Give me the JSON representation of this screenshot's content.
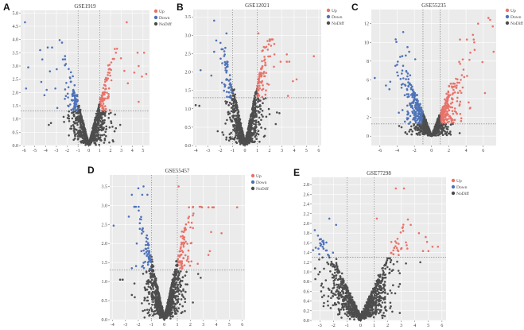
{
  "colors": {
    "up": "#E8736A",
    "down": "#4F72B8",
    "nodiff": "#4D4D4D",
    "panel_bg": "#EBEBEB",
    "grid": "#FFFFFF"
  },
  "legend": [
    "Up",
    "Down",
    "NoDiff"
  ],
  "chart_data": [
    {
      "letter": "A",
      "type": "scatter",
      "title": "GSE1919",
      "xlabel": "",
      "ylabel": "",
      "xlim": [
        -6.3,
        5.6
      ],
      "ylim": [
        0,
        5.1
      ],
      "xticks": [
        -6,
        -5,
        -4,
        -3,
        -2,
        -1,
        0,
        1,
        2,
        3,
        4,
        5
      ],
      "yticks": [
        "0.0",
        "0.5",
        "1.0",
        "1.5",
        "2.0",
        "2.5",
        "3.0",
        "3.5",
        "4.0",
        "4.5",
        "5.0"
      ],
      "fc_threshold": 1,
      "p_threshold_line": 1.3,
      "cloud": {
        "n": 900,
        "sx": 0.95,
        "slope": 1.55,
        "seed": 11
      },
      "points": [
        [
          -5.9,
          4.65
        ],
        [
          3.5,
          4.65
        ],
        [
          -3.4,
          3.7
        ],
        [
          -3.8,
          3.7
        ],
        [
          -4.5,
          3.6
        ],
        [
          4.5,
          3.5
        ],
        [
          5.1,
          3.5
        ],
        [
          -5.6,
          2.95
        ],
        [
          -5.8,
          2.15
        ],
        [
          4.6,
          1.65
        ],
        [
          5.3,
          2.7
        ],
        [
          4.9,
          2.6
        ],
        [
          4.6,
          3.0
        ],
        [
          2.6,
          3.65
        ],
        [
          2.5,
          3.5
        ],
        [
          -4.3,
          3.25
        ],
        [
          -2.4,
          3.25
        ],
        [
          -3.6,
          2.8
        ],
        [
          -4.4,
          2.4
        ],
        [
          -3.9,
          2.1
        ],
        [
          -4.1,
          1.9
        ],
        [
          3.6,
          2.35
        ],
        [
          4.2,
          2.75
        ],
        [
          -3.1,
          2.15
        ],
        [
          -3.5,
          0.85
        ],
        [
          -3.7,
          0.78
        ],
        [
          2.9,
          0.78
        ],
        [
          2.5,
          0.65
        ]
      ],
      "legend_position": "right"
    },
    {
      "letter": "B",
      "type": "scatter",
      "title": "GSE12021",
      "xlabel": "",
      "ylabel": "",
      "xlim": [
        -4.2,
        6.2
      ],
      "ylim": [
        0,
        3.7
      ],
      "xticks": [
        -4,
        -3,
        -2,
        -1,
        0,
        1,
        2,
        3,
        4,
        5,
        6
      ],
      "yticks": [
        "0.0",
        "0.5",
        "1.0",
        "1.5",
        "2.0",
        "2.5",
        "3.0",
        "3.5"
      ],
      "fc_threshold": 1,
      "p_threshold_line": 1.3,
      "cloud": {
        "n": 900,
        "sx": 0.8,
        "slope": 1.55,
        "seed": 23
      },
      "points": [
        [
          -2.5,
          3.4
        ],
        [
          -1.5,
          3.05
        ],
        [
          1.1,
          3.05
        ],
        [
          -3.6,
          2.05
        ],
        [
          5.6,
          2.43
        ],
        [
          4.2,
          1.8
        ],
        [
          -4,
          1.1
        ],
        [
          -3.7,
          1.08
        ],
        [
          -2.5,
          2.55
        ],
        [
          -1.8,
          2.62
        ],
        [
          -1.9,
          2.62
        ],
        [
          1.4,
          2.57
        ],
        [
          2.4,
          2.48
        ],
        [
          3.4,
          2.48
        ],
        [
          3.4,
          2.28
        ],
        [
          3.6,
          2.28
        ],
        [
          2.9,
          2.28
        ],
        [
          3.9,
          1.75
        ],
        [
          3.5,
          1.35
        ],
        [
          2.6,
          0.9
        ],
        [
          2.8,
          0.88
        ],
        [
          -1.5,
          0.22
        ]
      ],
      "legend_position": "right"
    },
    {
      "letter": "C",
      "type": "scatter",
      "title": "GSE55235",
      "xlabel": "",
      "ylabel": "",
      "xlim": [
        -7,
        7.5
      ],
      "ylim": [
        -1,
        13.5
      ],
      "xticks": [
        -6,
        -4,
        -2,
        0,
        2,
        4,
        6
      ],
      "yticks": [
        "0",
        "2",
        "4",
        "6",
        "8",
        "10",
        "12"
      ],
      "fc_threshold": 1,
      "p_threshold_line": 1.3,
      "cloud": {
        "n": 1100,
        "sx": 1.45,
        "slope": 2.3,
        "seed": 37
      },
      "points": [
        [
          6.6,
          12.6
        ],
        [
          6.8,
          12.4
        ],
        [
          5.4,
          12
        ],
        [
          7.1,
          11.7
        ],
        [
          -3.3,
          11.1
        ],
        [
          4.8,
          10.8
        ],
        [
          7.2,
          9
        ],
        [
          -2.8,
          9.5
        ],
        [
          -6.6,
          6.2
        ],
        [
          6.2,
          4.6
        ],
        [
          -5.3,
          5.4
        ],
        [
          -4.2,
          7.5
        ],
        [
          5.9,
          7.9
        ],
        [
          3.3,
          10.3
        ],
        [
          4.1,
          10.3
        ],
        [
          4.9,
          10.3
        ],
        [
          5,
          9.2
        ],
        [
          4.5,
          8.9
        ],
        [
          -2.6,
          9
        ],
        [
          -3,
          8.6
        ],
        [
          -1.9,
          8.2
        ],
        [
          -4,
          6.8
        ],
        [
          -4.8,
          5.8
        ],
        [
          -4.9,
          5.0
        ],
        [
          -3.8,
          2.5
        ],
        [
          4.3,
          3.6
        ],
        [
          -3.6,
          6.1
        ],
        [
          -3.4,
          7.0
        ]
      ],
      "legend_position": "right"
    },
    {
      "letter": "D",
      "type": "scatter",
      "title": "GSE55457",
      "xlabel": "",
      "ylabel": "",
      "xlim": [
        -4.2,
        6.2
      ],
      "ylim": [
        0,
        3.8
      ],
      "xticks": [
        -4,
        -3,
        -2,
        -1,
        0,
        1,
        2,
        3,
        4,
        5,
        6
      ],
      "yticks": [
        "0.0",
        "0.5",
        "1.0",
        "1.5",
        "2.0",
        "2.5",
        "3.0",
        "3.5"
      ],
      "fc_threshold": 1,
      "p_threshold_line": 1.3,
      "cloud": {
        "n": 1000,
        "sx": 0.85,
        "slope": 1.5,
        "seed": 51
      },
      "points": [
        [
          -2,
          3.45
        ],
        [
          -1.6,
          3.5
        ],
        [
          -2.5,
          3.28
        ],
        [
          1.1,
          3.5
        ],
        [
          5.6,
          2.95
        ],
        [
          -3.9,
          2.47
        ],
        [
          4.4,
          2.27
        ],
        [
          3.8,
          2.95
        ],
        [
          -1.7,
          3.28
        ],
        [
          -1.3,
          3.28
        ],
        [
          2.9,
          2.95
        ],
        [
          3.4,
          2.95
        ],
        [
          3.7,
          2.95
        ],
        [
          1.9,
          2.95
        ],
        [
          2.2,
          2.95
        ],
        [
          3.6,
          2.3
        ],
        [
          3.5,
          1.8
        ],
        [
          3.4,
          1.7
        ],
        [
          -2.5,
          1.35
        ],
        [
          -3.2,
          1.05
        ],
        [
          -3.4,
          1.05
        ],
        [
          -2.5,
          0.65
        ],
        [
          -2.3,
          0.95
        ],
        [
          2.2,
          0.45
        ],
        [
          2.6,
          1.2
        ],
        [
          2.8,
          1.1
        ]
      ],
      "legend_position": "right"
    },
    {
      "letter": "E",
      "type": "scatter",
      "title": "GSE77298",
      "xlabel": "",
      "ylabel": "",
      "xlim": [
        -3.6,
        6.3
      ],
      "ylim": [
        0,
        2.95
      ],
      "xticks": [
        -3,
        -2,
        -1,
        0,
        1,
        2,
        3,
        4,
        5,
        6
      ],
      "yticks": [
        "0.0",
        "0.2",
        "0.4",
        "0.6",
        "0.8",
        "1.0",
        "1.2",
        "1.4",
        "1.6",
        "1.8",
        "2.0",
        "2.2",
        "2.4",
        "2.6",
        "2.8"
      ],
      "fc_threshold": 1,
      "p_threshold_line": 1.3,
      "cloud": {
        "n": 1100,
        "sx": 1.25,
        "slope": 0.62,
        "seed": 67
      },
      "points": [
        [
          2.6,
          2.72
        ],
        [
          3.2,
          2.72
        ],
        [
          -2.3,
          2.1
        ],
        [
          1.2,
          2.1
        ],
        [
          -1.8,
          1.97
        ],
        [
          3.7,
          1.97
        ],
        [
          -3,
          1.67
        ],
        [
          5.7,
          1.52
        ],
        [
          5.3,
          1.52
        ],
        [
          4.4,
          1.2
        ],
        [
          -3.3,
          1.5
        ],
        [
          -3.1,
          1.48
        ],
        [
          -2.8,
          1.52
        ],
        [
          -3.5,
          1.45
        ],
        [
          4.6,
          1.43
        ],
        [
          5.0,
          1.43
        ],
        [
          4.3,
          1.8
        ],
        [
          4.8,
          1.72
        ],
        [
          4.9,
          1.62
        ],
        [
          2.8,
          1.58
        ],
        [
          3.4,
          1.55
        ],
        [
          -2.9,
          0.6
        ],
        [
          -3.0,
          1.0
        ],
        [
          -3.1,
          0.95
        ]
      ],
      "legend_position": "right"
    }
  ]
}
